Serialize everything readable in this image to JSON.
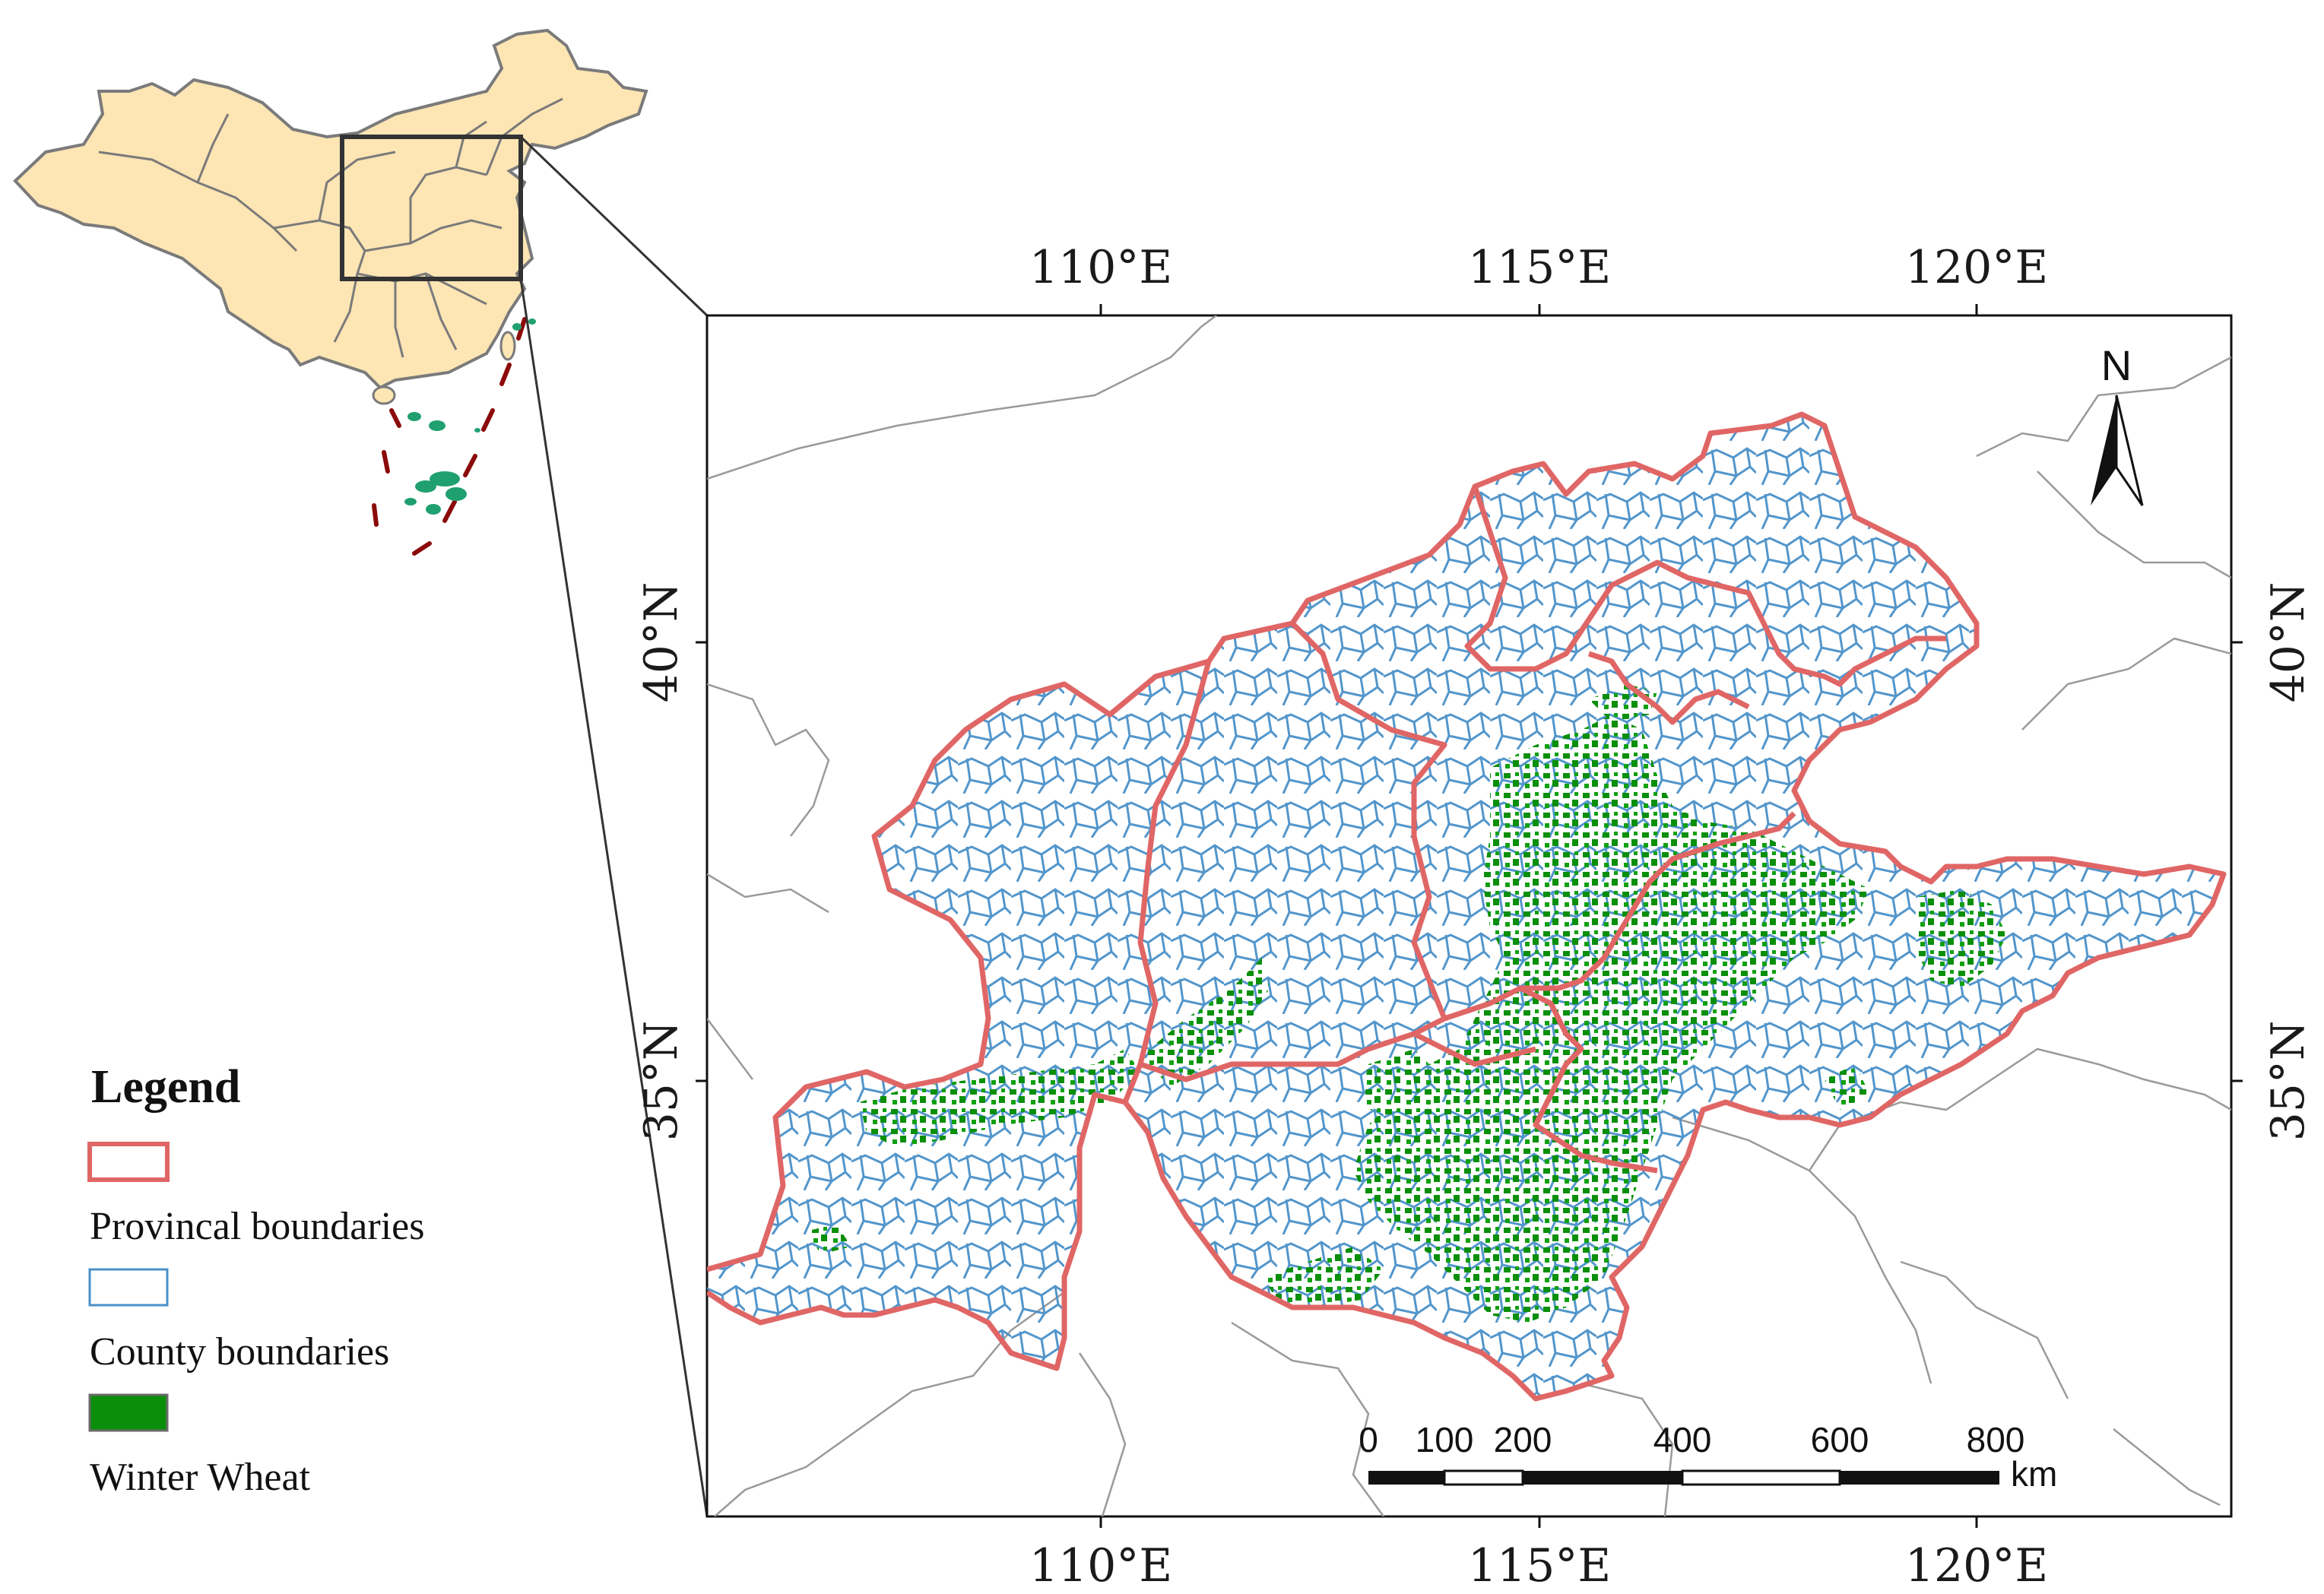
{
  "map": {
    "lon_labels": [
      "110°E",
      "115°E",
      "120°E"
    ],
    "lat_labels": [
      "40°N",
      "35°N"
    ],
    "north_label": "N"
  },
  "legend": {
    "title": "Legend",
    "items": [
      {
        "label": "Provincal boundaries",
        "color": "#e06666",
        "kind": "outline"
      },
      {
        "label": "County boundaries",
        "color": "#4a90c8",
        "kind": "outline"
      },
      {
        "label": "Winter Wheat",
        "color": "#0a8f0a",
        "kind": "fill"
      }
    ]
  },
  "scalebar": {
    "ticks": [
      "0",
      "100",
      "200",
      "400",
      "600",
      "800"
    ],
    "unit": "km"
  },
  "colors": {
    "province": "#e06666",
    "county": "#4a90c8",
    "wheat": "#0a8f0a",
    "china_fill": "#fde5b4",
    "china_stroke": "#7a7a7a",
    "background_lines": "#9a9a9a"
  }
}
